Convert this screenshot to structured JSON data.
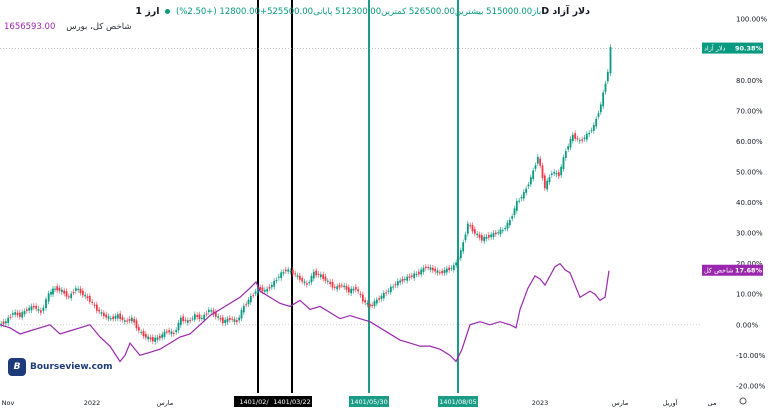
{
  "header": {
    "symbol": "ارز 1D دلار آزاد",
    "ohlc": "باز515000.00 بیشترین526500.00 کمترین512300.00 پایانی525500.00+12800.00 (+2.50%)",
    "second_series_label": "شاخص کل، بورس",
    "second_series_value": "1656593.00"
  },
  "logo": {
    "mark": "B",
    "text": "Bourseview.com"
  },
  "colors": {
    "up": "#089981",
    "down": "#f23645",
    "index": "#9b27af",
    "marker_black": "#000000",
    "marker_teal": "#1b9c86"
  },
  "chart_data": {
    "type": "line",
    "y_axis": {
      "ticks": [
        "100.00%",
        "90.00%",
        "80.00%",
        "70.00%",
        "60.00%",
        "50.00%",
        "40.00%",
        "30.00%",
        "20.00%",
        "10.00%",
        "0.00%",
        "-10.00%",
        "-20.00%"
      ],
      "ylim": [
        -22,
        103
      ]
    },
    "x_axis": {
      "ticks": [
        "Nov",
        "2022",
        "مارس",
        "2023",
        "مارس",
        "آوریل",
        "می"
      ]
    },
    "markers": [
      {
        "label": "1401/02/",
        "color": "black"
      },
      {
        "label": "1401/03/22",
        "color": "black"
      },
      {
        "label": "1401/05/30",
        "color": "teal"
      },
      {
        "label": "1401/08/05",
        "color": "teal"
      }
    ],
    "series": [
      {
        "name": "دلار آزاد",
        "style": "candles",
        "last_label": "90.38%",
        "points": [
          [
            0,
            0
          ],
          [
            7,
            1
          ],
          [
            14,
            4
          ],
          [
            21,
            3
          ],
          [
            28,
            5
          ],
          [
            35,
            6
          ],
          [
            42,
            4
          ],
          [
            50,
            10
          ],
          [
            56,
            12
          ],
          [
            63,
            11
          ],
          [
            70,
            9
          ],
          [
            77,
            12
          ],
          [
            84,
            10
          ],
          [
            91,
            8
          ],
          [
            98,
            5
          ],
          [
            105,
            3
          ],
          [
            112,
            2
          ],
          [
            119,
            3
          ],
          [
            126,
            1
          ],
          [
            133,
            2
          ],
          [
            140,
            -2
          ],
          [
            147,
            -4
          ],
          [
            154,
            -5
          ],
          [
            161,
            -4
          ],
          [
            168,
            -2
          ],
          [
            175,
            -3
          ],
          [
            182,
            2
          ],
          [
            189,
            1
          ],
          [
            196,
            3
          ],
          [
            203,
            2
          ],
          [
            210,
            5
          ],
          [
            217,
            3
          ],
          [
            224,
            1
          ],
          [
            231,
            2
          ],
          [
            238,
            1
          ],
          [
            245,
            6
          ],
          [
            252,
            9
          ],
          [
            259,
            12
          ],
          [
            266,
            11
          ],
          [
            273,
            13
          ],
          [
            280,
            16
          ],
          [
            287,
            18
          ],
          [
            294,
            17
          ],
          [
            301,
            15
          ],
          [
            308,
            13
          ],
          [
            315,
            17
          ],
          [
            322,
            16
          ],
          [
            329,
            14
          ],
          [
            336,
            12
          ],
          [
            343,
            13
          ],
          [
            350,
            11
          ],
          [
            357,
            12
          ],
          [
            364,
            8
          ],
          [
            371,
            6
          ],
          [
            378,
            8
          ],
          [
            385,
            10
          ],
          [
            392,
            12
          ],
          [
            399,
            14
          ],
          [
            406,
            15
          ],
          [
            413,
            16
          ],
          [
            420,
            17
          ],
          [
            427,
            19
          ],
          [
            434,
            18
          ],
          [
            441,
            17
          ],
          [
            448,
            18
          ],
          [
            455,
            19
          ],
          [
            462,
            24
          ],
          [
            469,
            33
          ],
          [
            476,
            30
          ],
          [
            483,
            28
          ],
          [
            490,
            29
          ],
          [
            497,
            30
          ],
          [
            504,
            31
          ],
          [
            511,
            34
          ],
          [
            518,
            40
          ],
          [
            525,
            43
          ],
          [
            532,
            48
          ],
          [
            539,
            55
          ],
          [
            546,
            45
          ],
          [
            553,
            50
          ],
          [
            560,
            49
          ],
          [
            567,
            57
          ],
          [
            574,
            62
          ],
          [
            581,
            60
          ],
          [
            588,
            62
          ],
          [
            595,
            65
          ],
          [
            602,
            72
          ],
          [
            609,
            83
          ],
          [
            612,
            90.38
          ]
        ]
      },
      {
        "name": "شاخص کل",
        "style": "line",
        "last_label": "17.68%",
        "points": [
          [
            0,
            0
          ],
          [
            10,
            -1
          ],
          [
            20,
            -3
          ],
          [
            30,
            -2
          ],
          [
            40,
            -1
          ],
          [
            50,
            0
          ],
          [
            60,
            -3
          ],
          [
            70,
            -2
          ],
          [
            80,
            -1
          ],
          [
            90,
            0
          ],
          [
            100,
            -4
          ],
          [
            110,
            -7
          ],
          [
            120,
            -12
          ],
          [
            125,
            -10
          ],
          [
            130,
            -6
          ],
          [
            140,
            -10
          ],
          [
            150,
            -9
          ],
          [
            160,
            -8
          ],
          [
            170,
            -6
          ],
          [
            180,
            -4
          ],
          [
            190,
            -3
          ],
          [
            200,
            0
          ],
          [
            210,
            3
          ],
          [
            220,
            5
          ],
          [
            230,
            7
          ],
          [
            240,
            9
          ],
          [
            250,
            12
          ],
          [
            256,
            14
          ],
          [
            260,
            11
          ],
          [
            270,
            9
          ],
          [
            280,
            7
          ],
          [
            290,
            6
          ],
          [
            300,
            8
          ],
          [
            310,
            5
          ],
          [
            320,
            6
          ],
          [
            330,
            4
          ],
          [
            340,
            2
          ],
          [
            350,
            3
          ],
          [
            360,
            2
          ],
          [
            370,
            1
          ],
          [
            380,
            -1
          ],
          [
            390,
            -3
          ],
          [
            400,
            -5
          ],
          [
            410,
            -6
          ],
          [
            420,
            -7
          ],
          [
            430,
            -7
          ],
          [
            440,
            -8
          ],
          [
            450,
            -10
          ],
          [
            456,
            -12
          ],
          [
            462,
            -8
          ],
          [
            470,
            0
          ],
          [
            480,
            1
          ],
          [
            490,
            0
          ],
          [
            500,
            1
          ],
          [
            510,
            0
          ],
          [
            516,
            -1
          ],
          [
            520,
            5
          ],
          [
            528,
            12
          ],
          [
            535,
            16
          ],
          [
            540,
            15
          ],
          [
            545,
            13
          ],
          [
            550,
            16
          ],
          [
            555,
            19
          ],
          [
            560,
            20
          ],
          [
            565,
            18
          ],
          [
            570,
            17
          ],
          [
            575,
            13
          ],
          [
            580,
            9
          ],
          [
            585,
            10
          ],
          [
            590,
            11
          ],
          [
            595,
            10
          ],
          [
            600,
            8
          ],
          [
            605,
            9
          ],
          [
            609,
            17.68
          ]
        ]
      }
    ]
  }
}
